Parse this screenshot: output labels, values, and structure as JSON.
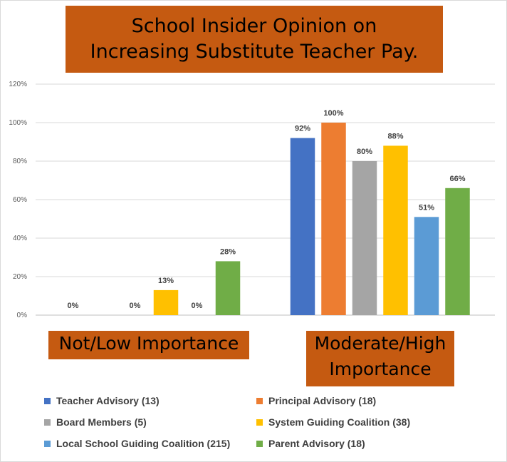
{
  "chart_data": {
    "type": "bar",
    "title": [
      "School Insider Opinion on",
      "Increasing Substitute Teacher Pay."
    ],
    "categories": [
      "Not/Low Importance",
      "Moderate/High Importance"
    ],
    "category_lines": [
      [
        "Not/Low Importance"
      ],
      [
        "Moderate/High",
        "Importance"
      ]
    ],
    "ylim": [
      0,
      120
    ],
    "yticks": [
      0,
      20,
      40,
      60,
      80,
      100,
      120
    ],
    "ytick_labels": [
      "0%",
      "20%",
      "40%",
      "60%",
      "80%",
      "100%",
      "120%"
    ],
    "value_format": "percent",
    "grid": true,
    "legend_position": "bottom",
    "series": [
      {
        "name": "Teacher Advisory (13)",
        "color": "#4472c4",
        "values": [
          0,
          92
        ],
        "labels": [
          "0%",
          "92%"
        ]
      },
      {
        "name": "Principal Advisory (18)",
        "color": "#ed7d31",
        "values": [
          null,
          100
        ],
        "labels": [
          "",
          "100%"
        ]
      },
      {
        "name": "Board Members (5)",
        "color": "#a5a5a5",
        "values": [
          0,
          80
        ],
        "labels": [
          "0%",
          "80%"
        ]
      },
      {
        "name": "System Guiding Coalition (38)",
        "color": "#ffc000",
        "values": [
          13,
          88
        ],
        "labels": [
          "13%",
          "88%"
        ]
      },
      {
        "name": "Local School Guiding Coalition (215)",
        "color": "#5b9bd5",
        "values": [
          0,
          51
        ],
        "labels": [
          "0%",
          "51%"
        ]
      },
      {
        "name": "Parent Advisory (18)",
        "color": "#70ad47",
        "values": [
          28,
          66
        ],
        "labels": [
          "28%",
          "66%"
        ]
      }
    ]
  }
}
